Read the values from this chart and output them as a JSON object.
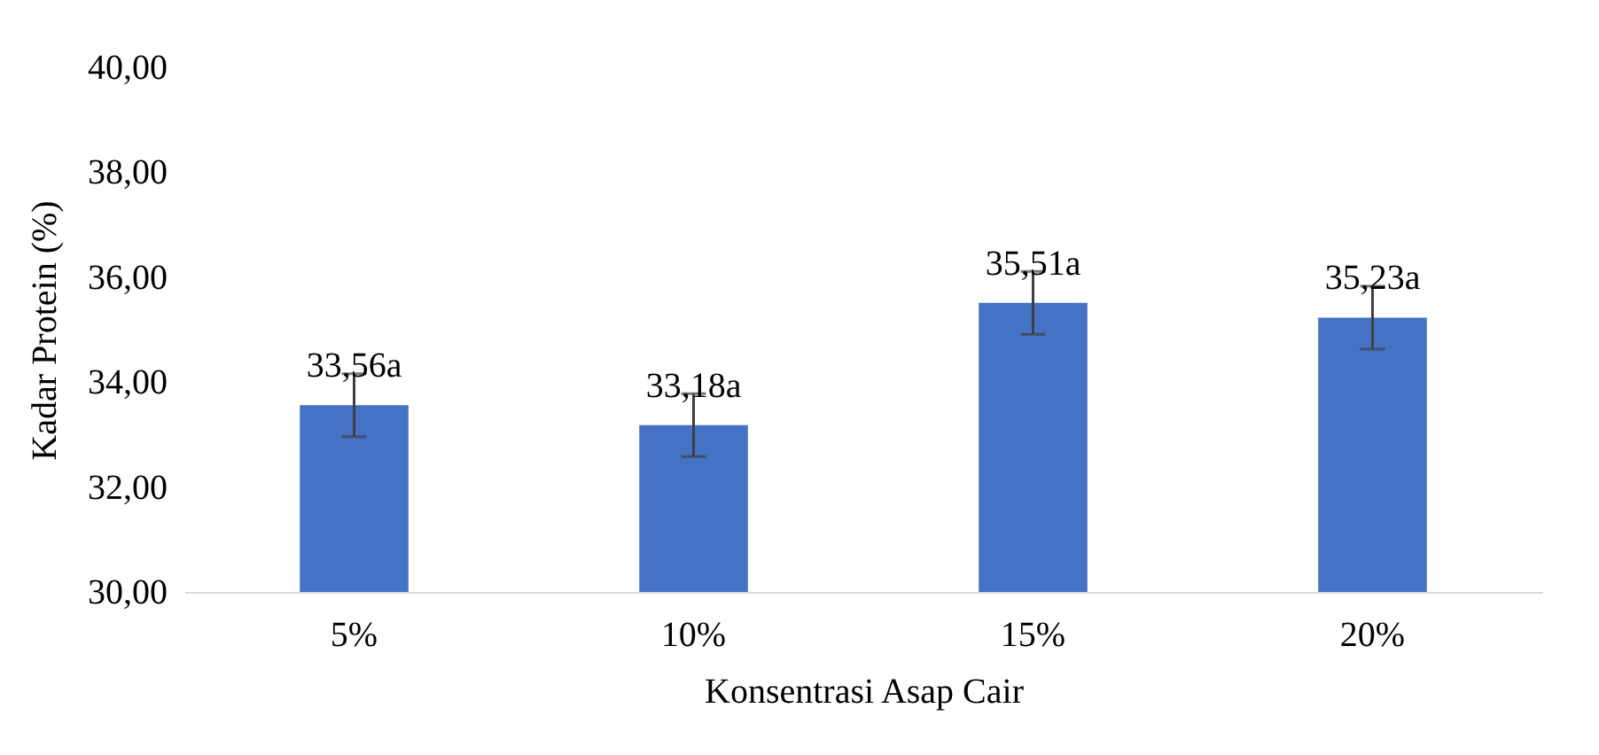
{
  "chart_data": {
    "type": "bar",
    "xlabel": "Konsentrasi Asap Cair",
    "ylabel": "Kadar Protein (%)",
    "categories": [
      "5%",
      "10%",
      "15%",
      "20%"
    ],
    "series": [
      {
        "color": "#4472c4",
        "values": [
          33.56,
          33.18,
          35.51,
          35.23
        ],
        "errors": [
          0.6,
          0.6,
          0.6,
          0.6
        ],
        "value_labels": [
          "33,56a",
          "33,18a",
          "35,51a",
          "35,23a"
        ]
      }
    ],
    "ylim": [
      30,
      40
    ],
    "yticks": [
      {
        "value": 30,
        "label": "30,00"
      },
      {
        "value": 32,
        "label": "32,00"
      },
      {
        "value": 34,
        "label": "34,00"
      },
      {
        "value": 36,
        "label": "36,00"
      },
      {
        "value": 38,
        "label": "38,00"
      },
      {
        "value": 40,
        "label": "40,00"
      }
    ],
    "grid": false
  }
}
